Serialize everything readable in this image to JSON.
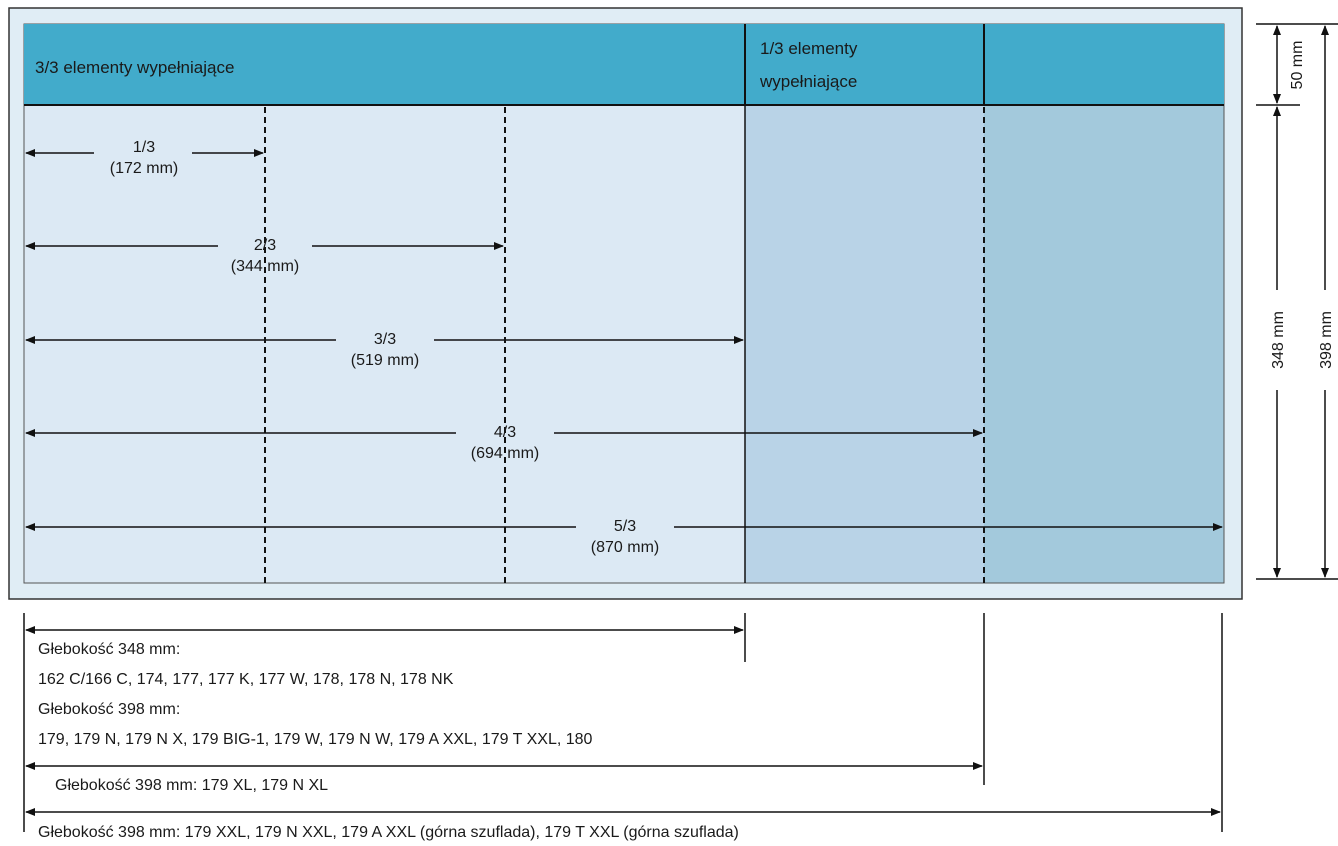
{
  "header": {
    "left_label": "3/3 elementy wypełniające",
    "mid_label_line1": "1/3 elementy",
    "mid_label_line2": "wypełniające"
  },
  "dimensions": [
    {
      "fraction": "1/3",
      "size": "(172 mm)"
    },
    {
      "fraction": "2/3",
      "size": "(344 mm)"
    },
    {
      "fraction": "3/3",
      "size": "(519 mm)"
    },
    {
      "fraction": "4/3",
      "size": "(694 mm)"
    },
    {
      "fraction": "5/3",
      "size": "(870 mm)"
    }
  ],
  "side": {
    "top_height": "50 mm",
    "inner_height": "348 mm",
    "total_height": "398 mm"
  },
  "depths": {
    "d348_title": "Głebokość 348 mm:",
    "d348_models": "162 C/166 C, 174, 177, 177 K, 177 W, 178, 178 N, 178 NK",
    "d398_title": "Głebokość 398 mm:",
    "d398_models": "179, 179 N, 179 N X, 179 BIG-1, 179 W, 179 N W, 179 A XXL, 179 T XXL, 180",
    "d398_xl": "Głebokość 398 mm: 179 XL, 179 N XL",
    "d398_xxl": "Głebokość 398 mm: 179 XXL, 179 N XXL, 179 A XXL (górna szuflada), 179 T XXL (górna szuflada)"
  },
  "colors": {
    "header": "#42abcb",
    "body_light": "#dce9f4",
    "body_mid": "#b9d3e7",
    "body_dark": "#a3c9dc",
    "frame": "#e0edf5"
  }
}
